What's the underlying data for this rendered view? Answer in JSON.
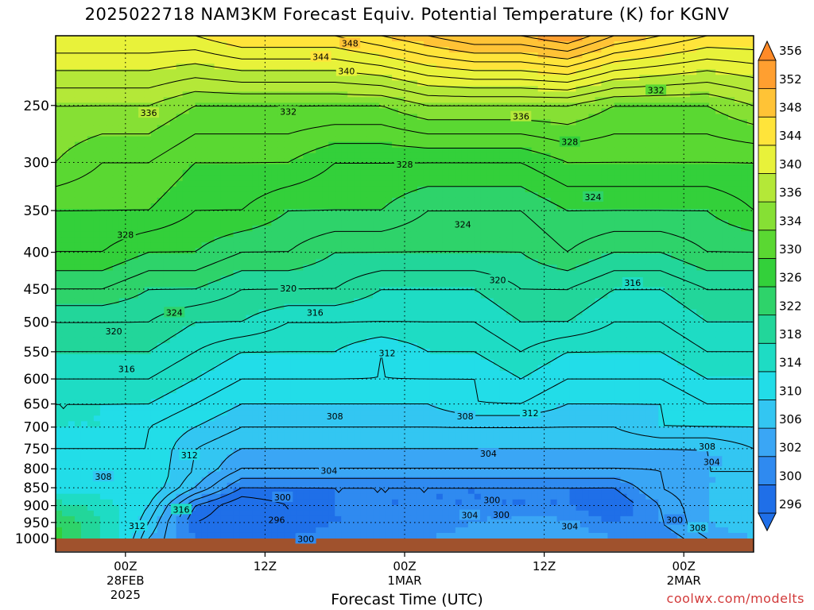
{
  "chart_data": {
    "type": "heatmap",
    "title": "2025022718 NAM3KM Forecast Equiv. Potential Temperature (K) for KGNV",
    "xlabel": "Forecast Time (UTC)",
    "ylabel": "",
    "y_scale": "log",
    "y_inverted": true,
    "y_ticks": [
      250,
      300,
      350,
      400,
      450,
      500,
      550,
      600,
      650,
      700,
      750,
      800,
      850,
      900,
      950,
      1000
    ],
    "ylim": [
      1000,
      200
    ],
    "x_ticks": [
      {
        "hour": 6,
        "label": "00Z",
        "sub": "28FEB",
        "sub2": "2025"
      },
      {
        "hour": 18,
        "label": "12Z",
        "sub": "",
        "sub2": ""
      },
      {
        "hour": 30,
        "label": "00Z",
        "sub": "1MAR",
        "sub2": ""
      },
      {
        "hour": 42,
        "label": "12Z",
        "sub": "",
        "sub2": ""
      },
      {
        "hour": 54,
        "label": "00Z",
        "sub": "2MAR",
        "sub2": ""
      }
    ],
    "xlim": [
      0,
      60
    ],
    "colorbar": {
      "levels": [
        296,
        300,
        302,
        306,
        310,
        314,
        318,
        322,
        326,
        330,
        334,
        336,
        340,
        344,
        348,
        352,
        356
      ],
      "colors": [
        "#1f6fe8",
        "#2f8af0",
        "#3aa6f5",
        "#33c6f2",
        "#22dde8",
        "#1edcc4",
        "#22d69a",
        "#2ed36a",
        "#33d03a",
        "#5ad832",
        "#86e034",
        "#b4e838",
        "#e8f23a",
        "#ffe43a",
        "#ffc336",
        "#ff9f30",
        "#ff8a28"
      ]
    },
    "profile_levels_hPa": [
      1000,
      950,
      900,
      850,
      800,
      750,
      700,
      650,
      600,
      550,
      500,
      450,
      400,
      350,
      300,
      250,
      200
    ],
    "profile_times_hour": [
      0,
      4,
      8,
      12,
      16,
      20,
      24,
      28,
      32,
      36,
      40,
      44,
      48,
      52,
      56,
      60
    ],
    "values_K": [
      [
        328,
        318,
        306,
        300,
        298,
        300,
        302,
        302,
        302,
        304,
        306,
        304,
        302,
        300,
        304,
        306
      ],
      [
        326,
        318,
        308,
        298,
        296,
        298,
        300,
        300,
        300,
        302,
        304,
        302,
        300,
        302,
        306,
        308
      ],
      [
        320,
        316,
        310,
        300,
        296,
        298,
        300,
        300,
        300,
        300,
        300,
        300,
        298,
        302,
        306,
        308
      ],
      [
        312,
        312,
        312,
        306,
        300,
        300,
        300,
        300,
        300,
        300,
        300,
        300,
        300,
        304,
        306,
        306
      ],
      [
        310,
        310,
        312,
        308,
        304,
        304,
        304,
        304,
        304,
        304,
        304,
        304,
        304,
        304,
        306,
        306
      ],
      [
        312,
        312,
        312,
        308,
        306,
        306,
        306,
        306,
        306,
        306,
        306,
        306,
        306,
        306,
        306,
        308
      ],
      [
        314,
        314,
        312,
        310,
        308,
        308,
        308,
        308,
        308,
        308,
        308,
        308,
        308,
        310,
        310,
        310
      ],
      [
        314,
        314,
        314,
        312,
        310,
        310,
        310,
        310,
        310,
        312,
        312,
        310,
        310,
        310,
        312,
        312
      ],
      [
        316,
        316,
        316,
        314,
        312,
        312,
        312,
        312,
        312,
        312,
        314,
        312,
        312,
        312,
        314,
        314
      ],
      [
        318,
        318,
        318,
        316,
        314,
        314,
        314,
        312,
        314,
        314,
        316,
        314,
        314,
        314,
        316,
        316
      ],
      [
        320,
        320,
        320,
        318,
        318,
        316,
        316,
        316,
        316,
        316,
        318,
        318,
        316,
        316,
        318,
        318
      ],
      [
        324,
        324,
        322,
        322,
        320,
        320,
        320,
        318,
        318,
        318,
        320,
        320,
        318,
        318,
        320,
        320
      ],
      [
        328,
        328,
        326,
        326,
        324,
        324,
        322,
        322,
        322,
        322,
        322,
        324,
        322,
        322,
        324,
        324
      ],
      [
        330,
        330,
        330,
        328,
        328,
        326,
        326,
        326,
        324,
        324,
        324,
        326,
        326,
        326,
        326,
        328
      ],
      [
        334,
        332,
        332,
        330,
        330,
        330,
        328,
        328,
        328,
        328,
        328,
        330,
        330,
        330,
        330,
        330
      ],
      [
        336,
        336,
        336,
        334,
        334,
        334,
        334,
        334,
        336,
        336,
        336,
        336,
        334,
        334,
        334,
        336
      ],
      [
        344,
        344,
        344,
        344,
        346,
        346,
        346,
        348,
        350,
        352,
        352,
        354,
        350,
        348,
        346,
        346
      ]
    ],
    "contour_labels": [
      {
        "text": "348",
        "t": 25.3,
        "p": 205
      },
      {
        "text": "344",
        "t": 22.8,
        "p": 214
      },
      {
        "text": "340",
        "t": 25.0,
        "p": 224
      },
      {
        "text": "336",
        "t": 8.0,
        "p": 256
      },
      {
        "text": "332",
        "t": 20.0,
        "p": 255
      },
      {
        "text": "336",
        "t": 40.0,
        "p": 259
      },
      {
        "text": "332",
        "t": 51.6,
        "p": 238
      },
      {
        "text": "328",
        "t": 44.2,
        "p": 281
      },
      {
        "text": "328",
        "t": 30.0,
        "p": 302
      },
      {
        "text": "324",
        "t": 46.2,
        "p": 335
      },
      {
        "text": "324",
        "t": 35.0,
        "p": 366
      },
      {
        "text": "328",
        "t": 6.0,
        "p": 378
      },
      {
        "text": "320",
        "t": 20.0,
        "p": 449
      },
      {
        "text": "320",
        "t": 38.0,
        "p": 437
      },
      {
        "text": "316",
        "t": 49.6,
        "p": 441
      },
      {
        "text": "316",
        "t": 22.3,
        "p": 485
      },
      {
        "text": "324",
        "t": 10.2,
        "p": 485
      },
      {
        "text": "320",
        "t": 5.0,
        "p": 515
      },
      {
        "text": "312",
        "t": 28.5,
        "p": 552
      },
      {
        "text": "316",
        "t": 6.1,
        "p": 581
      },
      {
        "text": "308",
        "t": 24.0,
        "p": 676
      },
      {
        "text": "308",
        "t": 35.2,
        "p": 676
      },
      {
        "text": "312",
        "t": 40.8,
        "p": 669
      },
      {
        "text": "304",
        "t": 37.2,
        "p": 762
      },
      {
        "text": "308",
        "t": 56.0,
        "p": 745
      },
      {
        "text": "304",
        "t": 56.4,
        "p": 782
      },
      {
        "text": "312",
        "t": 11.5,
        "p": 766
      },
      {
        "text": "308",
        "t": 4.1,
        "p": 820
      },
      {
        "text": "304",
        "t": 23.5,
        "p": 805
      },
      {
        "text": "316",
        "t": 10.8,
        "p": 911
      },
      {
        "text": "300",
        "t": 19.5,
        "p": 876
      },
      {
        "text": "300",
        "t": 37.5,
        "p": 884
      },
      {
        "text": "300",
        "t": 38.3,
        "p": 926
      },
      {
        "text": "304",
        "t": 35.6,
        "p": 928
      },
      {
        "text": "296",
        "t": 19.0,
        "p": 942
      },
      {
        "text": "300",
        "t": 53.2,
        "p": 942
      },
      {
        "text": "312",
        "t": 7.0,
        "p": 960
      },
      {
        "text": "304",
        "t": 44.2,
        "p": 961
      },
      {
        "text": "308",
        "t": 55.2,
        "p": 966
      },
      {
        "text": "300",
        "t": 21.5,
        "p": 1001
      }
    ]
  },
  "header": {
    "title": "2025022718 NAM3KM Forecast Equiv. Potential Temperature (K) for KGNV"
  },
  "footer": {
    "xlabel": "Forecast Time (UTC)",
    "credit": "coolwx.com/modelts"
  },
  "colors": {
    "ground": "#a0522d",
    "frame": "#000000",
    "grid": "#000000"
  }
}
